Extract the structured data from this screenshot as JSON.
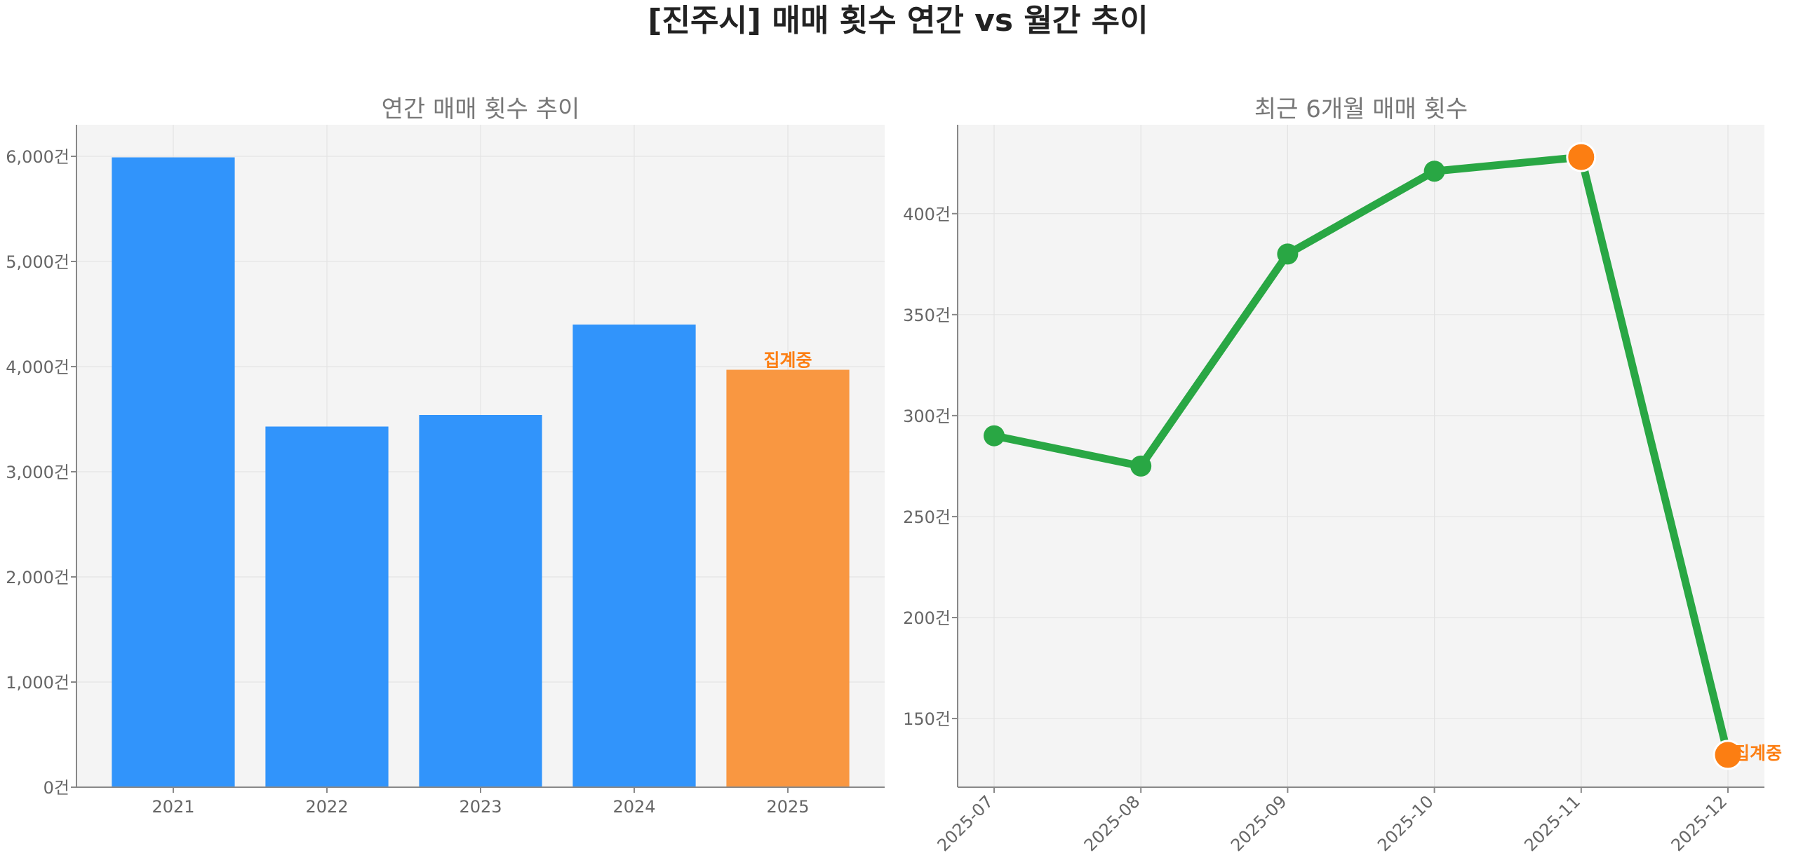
{
  "figure": {
    "title": "[진주시] 매매 횟수 연간 vs 월간 추이"
  },
  "colors": {
    "bar": "#3194fb",
    "bar_highlight": "#f99741",
    "line": "#29a744",
    "marker": "#29a744",
    "marker_highlight": "#fc7e12",
    "annotation": "#fc7e12",
    "panel_bg": "#f4f4f4"
  },
  "chart_data": [
    {
      "type": "bar",
      "title": "연간 매매 횟수 추이",
      "categories": [
        "2021",
        "2022",
        "2023",
        "2024",
        "2025"
      ],
      "values": [
        5990,
        3430,
        3540,
        4400,
        3970
      ],
      "highlight_index": 4,
      "annotation": {
        "text": "집계중",
        "index": 4
      },
      "ylim": [
        0,
        6300
      ],
      "yticks": [
        0,
        1000,
        2000,
        3000,
        4000,
        5000,
        6000
      ],
      "ytick_labels": [
        "0건",
        "1,000건",
        "2,000건",
        "3,000건",
        "4,000건",
        "5,000건",
        "6,000건"
      ],
      "grid": true,
      "xlabel": "",
      "ylabel": ""
    },
    {
      "type": "line",
      "title": "최근 6개월 매매 횟수",
      "x": [
        "2025-07",
        "2025-08",
        "2025-09",
        "2025-10",
        "2025-11",
        "2025-12"
      ],
      "values": [
        290,
        275,
        380,
        421,
        428,
        132
      ],
      "highlight_indices": [
        4,
        5
      ],
      "annotation": {
        "text": "집계중",
        "index": 5
      },
      "ylim": [
        116,
        444
      ],
      "yticks": [
        150,
        200,
        250,
        300,
        350,
        400
      ],
      "ytick_labels": [
        "150건",
        "200건",
        "250건",
        "300건",
        "350건",
        "400건"
      ],
      "grid": true,
      "xlabel": "",
      "ylabel": ""
    }
  ]
}
